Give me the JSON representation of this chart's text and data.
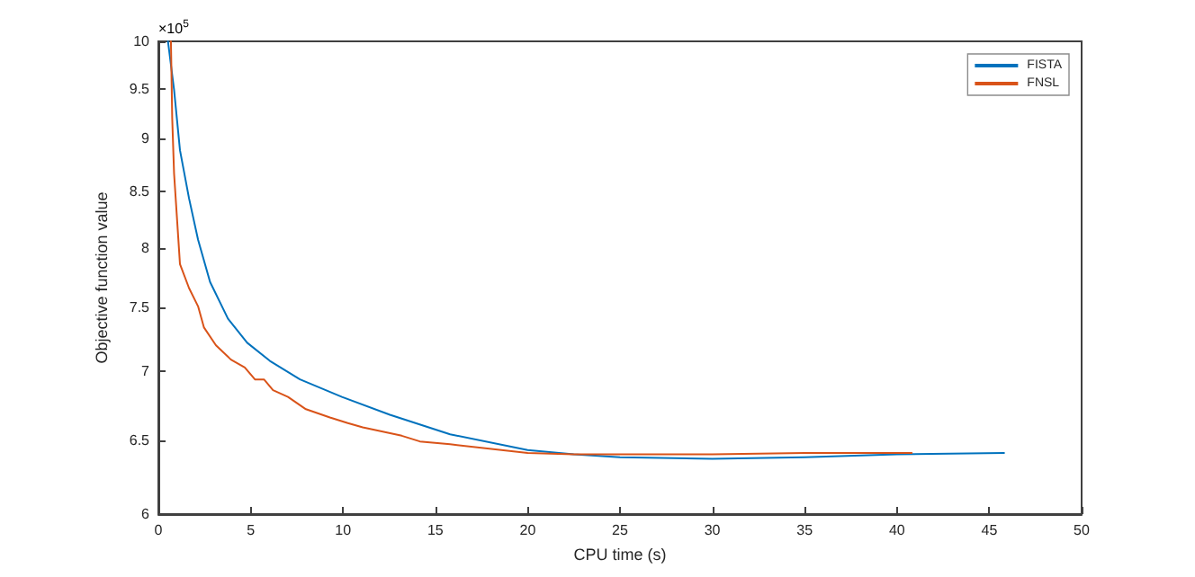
{
  "chart_data": {
    "type": "line",
    "xlabel": "CPU time (s)",
    "ylabel": "Objective function value",
    "annotations": [
      "×10$^{5}$"
    ],
    "log": "y",
    "grid": false,
    "legend": "top right",
    "marker": "none",
    "line_style": "solid",
    "xlim": [
      0,
      50
    ],
    "xticks": [
      0,
      5,
      10,
      15,
      20,
      25,
      30,
      35,
      40,
      45,
      50
    ],
    "ylim": [
      6,
      10
    ],
    "yticks": [
      6,
      6.5,
      7,
      7.5,
      8,
      8.5,
      9,
      9.5,
      10
    ],
    "series": [
      {
        "name": "FISTA",
        "color": "#0072bd",
        "x": [
          0.52,
          0.85,
          1.17,
          1.66,
          2.15,
          2.8,
          3.77,
          4.81,
          6.04,
          7.67,
          9.94,
          12.54,
          15.8,
          20,
          22.5,
          25,
          30,
          35,
          40,
          45.8
        ],
        "values": [
          10,
          9.49,
          8.89,
          8.44,
          8.07,
          7.71,
          7.41,
          7.22,
          7.08,
          6.94,
          6.81,
          6.68,
          6.54,
          6.43,
          6.4,
          6.38,
          6.37,
          6.38,
          6.4,
          6.41
        ]
      },
      {
        "name": "FNSL",
        "color": "#d95319",
        "x": [
          0.68,
          0.75,
          0.85,
          1.17,
          1.66,
          2.15,
          2.47,
          3.12,
          3.93,
          4.68,
          5.23,
          5.72,
          6.21,
          7.02,
          7.99,
          9.29,
          10.26,
          11.07,
          13.18,
          14.16,
          15.8,
          20,
          22.5,
          30,
          35,
          40.8
        ],
        "values": [
          10,
          9.2,
          8.67,
          7.86,
          7.66,
          7.51,
          7.34,
          7.2,
          7.09,
          7.03,
          6.94,
          6.94,
          6.86,
          6.81,
          6.72,
          6.66,
          6.62,
          6.59,
          6.53,
          6.49,
          6.47,
          6.41,
          6.4,
          6.4,
          6.41,
          6.41
        ]
      }
    ]
  }
}
